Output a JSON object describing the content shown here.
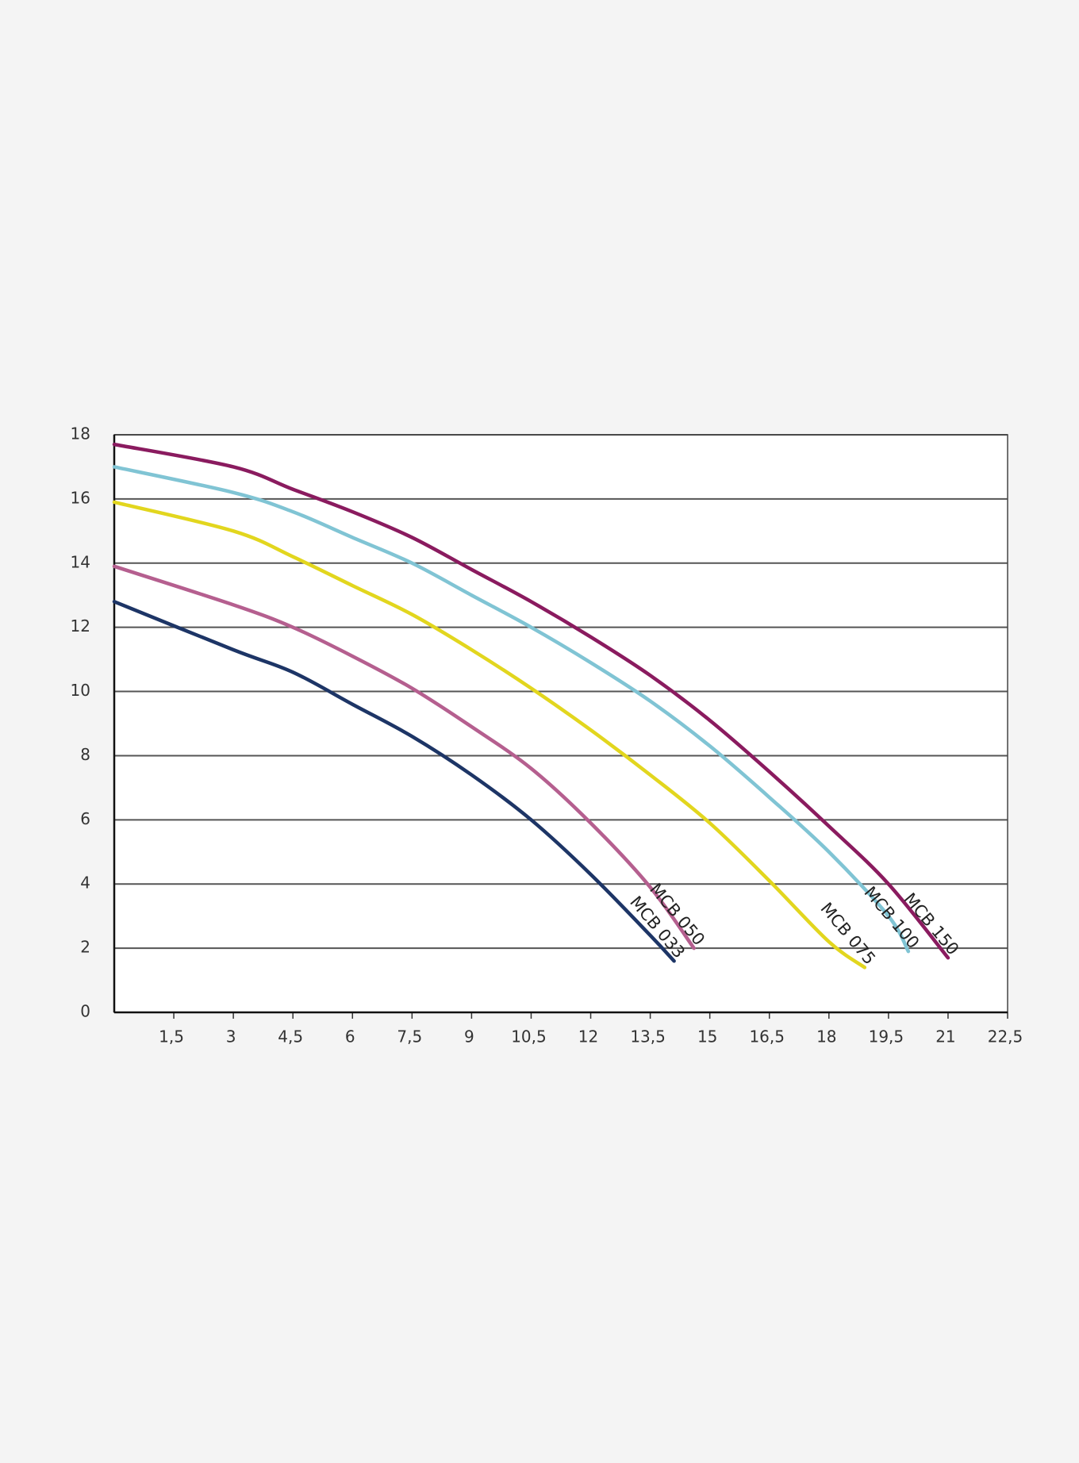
{
  "chart_data": {
    "type": "line",
    "xlim": [
      0,
      22.5
    ],
    "ylim": [
      0,
      18
    ],
    "xticks": [
      {
        "value": 1.5,
        "label": "1,5"
      },
      3,
      {
        "value": 4.5,
        "label": "4,5"
      },
      6,
      {
        "value": 7.5,
        "label": "7,5"
      },
      9,
      {
        "value": 10.5,
        "label": "10,5"
      },
      12,
      {
        "value": 13.5,
        "label": "13,5"
      },
      15,
      {
        "value": 16.5,
        "label": "16,5"
      },
      18,
      {
        "value": 19.5,
        "label": "19,5"
      },
      21,
      {
        "value": 22.5,
        "label": "22,5"
      }
    ],
    "yticks": [
      0,
      2,
      4,
      6,
      8,
      10,
      12,
      14,
      16,
      18
    ],
    "grid": true,
    "series": [
      {
        "name": "MCB 033",
        "color": "#1d3566",
        "x": [
          0,
          3,
          4.5,
          6,
          7.5,
          9,
          10.5,
          12,
          13.5,
          14.1
        ],
        "values": [
          12.8,
          11.3,
          10.6,
          9.6,
          8.6,
          7.4,
          6.0,
          4.3,
          2.4,
          1.6
        ]
      },
      {
        "name": "MCB 050",
        "color": "#b55f8f",
        "x": [
          0,
          3,
          4.5,
          6,
          7.5,
          9,
          10.5,
          12,
          13.5,
          14.6
        ],
        "values": [
          13.9,
          12.7,
          12.0,
          11.1,
          10.1,
          8.9,
          7.6,
          5.9,
          3.9,
          2.0
        ]
      },
      {
        "name": "MCB 075",
        "color": "#e2d61e",
        "x": [
          0,
          3,
          4.5,
          6,
          7.5,
          9,
          10.5,
          12,
          13.5,
          15,
          16.5,
          18,
          18.9
        ],
        "values": [
          15.9,
          15.0,
          14.2,
          13.3,
          12.4,
          11.3,
          10.1,
          8.8,
          7.4,
          5.9,
          4.1,
          2.2,
          1.4
        ]
      },
      {
        "name": "MCB 100",
        "color": "#80c4d4",
        "x": [
          0,
          3,
          4.5,
          6,
          7.5,
          9,
          10.5,
          12,
          13.5,
          15,
          16.5,
          18,
          19.5,
          20
        ],
        "values": [
          17.0,
          16.2,
          15.6,
          14.8,
          14.0,
          13.0,
          12.0,
          10.9,
          9.7,
          8.3,
          6.7,
          5.0,
          3.0,
          1.9
        ]
      },
      {
        "name": "MCB 150",
        "color": "#8a1b5f",
        "x": [
          0,
          3,
          4.5,
          6,
          7.5,
          9,
          10.5,
          12,
          13.5,
          15,
          16.5,
          18,
          19.5,
          21
        ],
        "values": [
          17.7,
          17.0,
          16.3,
          15.6,
          14.8,
          13.8,
          12.8,
          11.7,
          10.5,
          9.1,
          7.5,
          5.8,
          4.0,
          1.7
        ]
      }
    ]
  }
}
